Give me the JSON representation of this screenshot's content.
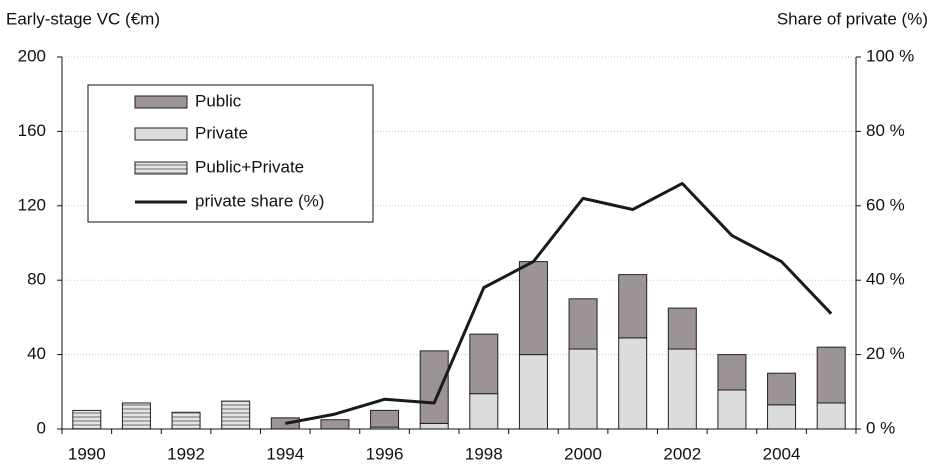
{
  "chart_data": {
    "type": "bar",
    "stacked": true,
    "ylabel": "Early-stage VC (€m)",
    "y2label": "Share of private (%)",
    "categories": [
      "1990",
      null,
      "1992",
      null,
      "1994",
      null,
      "1996",
      null,
      "1998",
      null,
      "2000",
      null,
      "2002",
      null,
      "2004",
      null
    ],
    "series": [
      {
        "name": "Public",
        "color": "#9c9494",
        "values": [
          null,
          null,
          null,
          null,
          6,
          5,
          9,
          39,
          32,
          50,
          27,
          34,
          22,
          19,
          17,
          30
        ]
      },
      {
        "name": "Private",
        "color": "#dcdcdc",
        "values": [
          null,
          null,
          null,
          null,
          null,
          null,
          1,
          3,
          19,
          40,
          43,
          49,
          43,
          21,
          13,
          14
        ]
      },
      {
        "name": "Public+Private",
        "color": "#c4c4c4",
        "pattern": "horizontal-stripes",
        "values": [
          10,
          14,
          9,
          15,
          null,
          null,
          null,
          null,
          null,
          null,
          null,
          null,
          null,
          null,
          null,
          null
        ]
      },
      {
        "name": "private share (%)",
        "type": "line",
        "axis": "y2",
        "color": "#1a1a1a",
        "values": [
          null,
          null,
          null,
          null,
          1.5,
          4,
          8,
          7,
          38,
          45,
          62,
          59,
          66,
          52,
          45,
          31
        ]
      }
    ],
    "ylim": [
      0,
      200
    ],
    "yticks": [
      0,
      40,
      80,
      120,
      160,
      200
    ],
    "y2lim": [
      0,
      100
    ],
    "y2ticks": [
      {
        "value": 0,
        "label": "0 %"
      },
      {
        "value": 20,
        "label": "20 %"
      },
      {
        "value": 40,
        "label": "40 %"
      },
      {
        "value": 60,
        "label": "60 %"
      },
      {
        "value": 80,
        "label": "80 %"
      },
      {
        "value": 100,
        "label": "100 %"
      }
    ],
    "grid": true,
    "legend": "upper left"
  }
}
